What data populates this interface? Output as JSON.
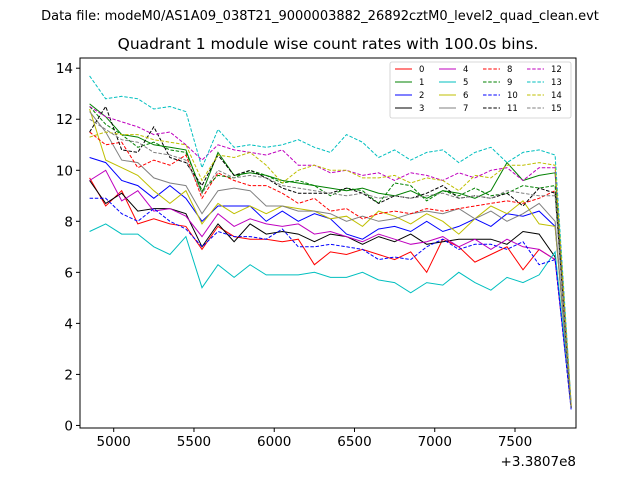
{
  "suptitle": "Data file: modeM0/AS1A09_038T21_9000003882_26892cztM0_level2_quad_clean.evt",
  "chart_data": {
    "type": "line",
    "title": "Quadrant 1 module wise count rates with 100.0s bins.",
    "xlabel": "",
    "ylabel": "",
    "x_offset_label": "+3.3807e8",
    "xlim": [
      4790,
      7880
    ],
    "ylim": [
      -0.1,
      14.4
    ],
    "x_ticks": [
      5000,
      5500,
      6000,
      6500,
      7000,
      7500
    ],
    "x_tick_labels": [
      "5000",
      "5500",
      "6000",
      "6500",
      "7000",
      "7500"
    ],
    "y_ticks": [
      0,
      2,
      4,
      6,
      8,
      10,
      12,
      14
    ],
    "y_tick_labels": [
      "0",
      "2",
      "4",
      "6",
      "8",
      "10",
      "12",
      "14"
    ],
    "grid": false,
    "legend_position": "top-right",
    "x": [
      4850,
      4950,
      5050,
      5150,
      5250,
      5350,
      5450,
      5550,
      5650,
      5750,
      5850,
      5950,
      6050,
      6150,
      6250,
      6350,
      6450,
      6550,
      6650,
      6750,
      6850,
      6950,
      7050,
      7150,
      7250,
      7350,
      7450,
      7550,
      7650,
      7750,
      7850
    ],
    "series": [
      {
        "name": "0",
        "color": "#ff0000",
        "dash": "solid",
        "values": [
          9.7,
          8.6,
          9.2,
          7.9,
          8.1,
          7.9,
          7.8,
          6.9,
          7.8,
          7.4,
          7.3,
          7.3,
          7.2,
          7.3,
          6.3,
          6.8,
          6.7,
          6.9,
          6.7,
          6.5,
          6.8,
          6.0,
          7.3,
          7.0,
          6.4,
          6.7,
          7.0,
          6.1,
          6.9,
          6.5,
          0.7
        ]
      },
      {
        "name": "1",
        "color": "#008000",
        "dash": "solid",
        "values": [
          12.6,
          12.1,
          11.4,
          11.3,
          11.0,
          10.9,
          10.8,
          9.1,
          10.7,
          9.8,
          9.9,
          9.8,
          9.6,
          9.5,
          9.4,
          9.3,
          9.2,
          9.3,
          9.1,
          9.0,
          9.2,
          8.9,
          9.2,
          9.1,
          8.9,
          9.2,
          10.3,
          9.6,
          9.8,
          9.9,
          0.7
        ]
      },
      {
        "name": "2",
        "color": "#0000ff",
        "dash": "solid",
        "values": [
          10.5,
          10.3,
          9.6,
          9.4,
          8.9,
          9.4,
          8.9,
          8.0,
          8.6,
          8.6,
          8.6,
          8.0,
          8.4,
          8.0,
          8.3,
          8.1,
          7.5,
          7.3,
          7.7,
          7.8,
          7.6,
          8.0,
          7.6,
          7.8,
          8.1,
          7.8,
          8.3,
          8.2,
          8.4,
          7.8,
          0.7
        ]
      },
      {
        "name": "3",
        "color": "#000000",
        "dash": "solid",
        "values": [
          9.6,
          8.7,
          9.1,
          8.4,
          8.5,
          8.5,
          8.3,
          7.0,
          7.9,
          7.2,
          7.9,
          7.5,
          7.6,
          7.5,
          7.2,
          7.5,
          7.4,
          7.1,
          7.4,
          7.2,
          7.5,
          7.1,
          7.2,
          7.3,
          7.3,
          7.3,
          7.1,
          7.6,
          7.5,
          6.6,
          0.7
        ]
      },
      {
        "name": "4",
        "color": "#bf00bf",
        "dash": "solid",
        "values": [
          9.6,
          10.0,
          8.8,
          9.2,
          8.4,
          8.5,
          8.2,
          7.4,
          8.3,
          7.8,
          8.1,
          7.9,
          7.8,
          7.9,
          7.5,
          7.6,
          7.4,
          7.2,
          7.5,
          7.3,
          7.1,
          7.2,
          7.4,
          7.0,
          7.3,
          6.9,
          7.3,
          7.0,
          6.9,
          6.5,
          0.7
        ]
      },
      {
        "name": "5",
        "color": "#00bfbf",
        "dash": "solid",
        "values": [
          7.6,
          7.9,
          7.5,
          7.5,
          7.0,
          6.7,
          7.4,
          5.4,
          6.3,
          5.8,
          6.3,
          5.9,
          5.9,
          5.9,
          6.0,
          5.8,
          5.8,
          6.0,
          5.7,
          5.6,
          5.2,
          5.6,
          5.5,
          6.0,
          5.6,
          5.3,
          5.8,
          5.6,
          5.9,
          6.8,
          0.7
        ]
      },
      {
        "name": "6",
        "color": "#bfbf00",
        "dash": "solid",
        "values": [
          12.4,
          10.4,
          10.1,
          9.8,
          9.2,
          8.7,
          9.2,
          7.9,
          8.7,
          8.3,
          8.6,
          8.3,
          8.6,
          8.5,
          8.4,
          8.1,
          8.2,
          7.8,
          8.4,
          8.2,
          7.9,
          8.3,
          8.0,
          7.5,
          8.1,
          8.6,
          8.3,
          8.8,
          7.9,
          7.8,
          0.7
        ]
      },
      {
        "name": "7",
        "color": "#808080",
        "dash": "solid",
        "values": [
          12.3,
          11.5,
          10.4,
          10.3,
          9.7,
          9.5,
          9.4,
          8.3,
          9.2,
          9.3,
          9.2,
          8.6,
          8.6,
          8.4,
          8.4,
          8.3,
          8.0,
          8.2,
          8.0,
          8.1,
          8.3,
          8.4,
          8.3,
          8.5,
          8.1,
          8.4,
          8.0,
          8.3,
          8.7,
          8.0,
          0.7
        ]
      },
      {
        "name": "8",
        "color": "#ff0000",
        "dash": "dashed",
        "values": [
          11.5,
          11.0,
          11.1,
          10.1,
          10.4,
          10.2,
          10.6,
          8.9,
          9.9,
          9.6,
          9.4,
          9.4,
          9.1,
          8.7,
          8.9,
          8.4,
          8.5,
          8.1,
          8.3,
          8.4,
          8.3,
          8.5,
          8.4,
          8.5,
          8.6,
          8.7,
          8.8,
          8.7,
          8.9,
          9.2,
          0.7
        ]
      },
      {
        "name": "9",
        "color": "#008000",
        "dash": "dashed",
        "values": [
          12.5,
          11.8,
          11.4,
          10.9,
          11.1,
          10.8,
          10.7,
          9.2,
          9.8,
          9.7,
          10.0,
          9.8,
          9.5,
          9.6,
          9.4,
          9.0,
          9.3,
          9.2,
          8.7,
          9.5,
          9.4,
          8.8,
          9.2,
          9.0,
          9.3,
          9.0,
          9.1,
          9.4,
          9.3,
          9.4,
          0.7
        ]
      },
      {
        "name": "10",
        "color": "#0000ff",
        "dash": "dashed",
        "values": [
          8.9,
          8.9,
          8.3,
          8.0,
          8.5,
          8.0,
          7.7,
          7.0,
          7.6,
          7.4,
          7.4,
          7.3,
          7.7,
          7.0,
          7.0,
          7.1,
          7.0,
          6.9,
          6.5,
          6.6,
          6.5,
          7.0,
          7.3,
          6.9,
          7.1,
          7.1,
          6.9,
          7.2,
          6.3,
          6.5,
          0.6
        ]
      },
      {
        "name": "11",
        "color": "#000000",
        "dash": "dashed",
        "values": [
          11.5,
          12.5,
          10.8,
          10.7,
          11.7,
          10.5,
          10.3,
          9.4,
          10.6,
          9.8,
          10.0,
          9.7,
          9.3,
          9.1,
          9.1,
          9.1,
          9.3,
          9.1,
          8.7,
          9.0,
          8.9,
          9.1,
          9.4,
          8.9,
          9.0,
          8.9,
          9.1,
          8.6,
          9.3,
          9.1,
          0.7
        ]
      },
      {
        "name": "12",
        "color": "#bf00bf",
        "dash": "dashed",
        "values": [
          12.5,
          12.1,
          11.9,
          11.7,
          11.4,
          11.5,
          11.0,
          10.4,
          11.0,
          10.8,
          10.7,
          10.6,
          10.8,
          10.2,
          10.2,
          9.9,
          10.0,
          9.8,
          9.9,
          9.6,
          9.9,
          9.8,
          9.6,
          9.9,
          9.7,
          10.0,
          10.1,
          9.6,
          10.1,
          10.1,
          0.8
        ]
      },
      {
        "name": "13",
        "color": "#00bfbf",
        "dash": "dashed",
        "values": [
          13.7,
          12.8,
          12.9,
          12.8,
          12.4,
          12.5,
          12.3,
          10.1,
          11.6,
          10.9,
          11.0,
          10.9,
          11.0,
          11.2,
          10.9,
          10.7,
          11.4,
          11.1,
          10.5,
          10.8,
          10.4,
          10.7,
          10.8,
          10.3,
          10.7,
          10.9,
          10.3,
          10.7,
          10.8,
          10.6,
          0.8
        ]
      },
      {
        "name": "14",
        "color": "#bfbf00",
        "dash": "dashed",
        "values": [
          11.3,
          11.5,
          11.4,
          11.4,
          11.2,
          11.1,
          11.0,
          9.6,
          10.6,
          10.5,
          10.7,
          10.2,
          9.5,
          10.0,
          10.2,
          10.0,
          10.0,
          9.7,
          9.7,
          9.8,
          9.5,
          9.7,
          9.6,
          9.2,
          9.8,
          9.7,
          10.2,
          10.2,
          10.3,
          10.2,
          0.8
        ]
      },
      {
        "name": "15",
        "color": "#808080",
        "dash": "dashed",
        "values": [
          12.0,
          11.6,
          11.2,
          11.1,
          10.7,
          10.6,
          10.4,
          9.1,
          10.0,
          9.7,
          9.8,
          9.7,
          9.4,
          9.3,
          9.2,
          9.1,
          9.0,
          9.1,
          8.9,
          9.0,
          8.9,
          9.0,
          9.1,
          8.9,
          9.0,
          8.9,
          9.2,
          9.1,
          9.0,
          9.0,
          0.7
        ]
      }
    ]
  }
}
